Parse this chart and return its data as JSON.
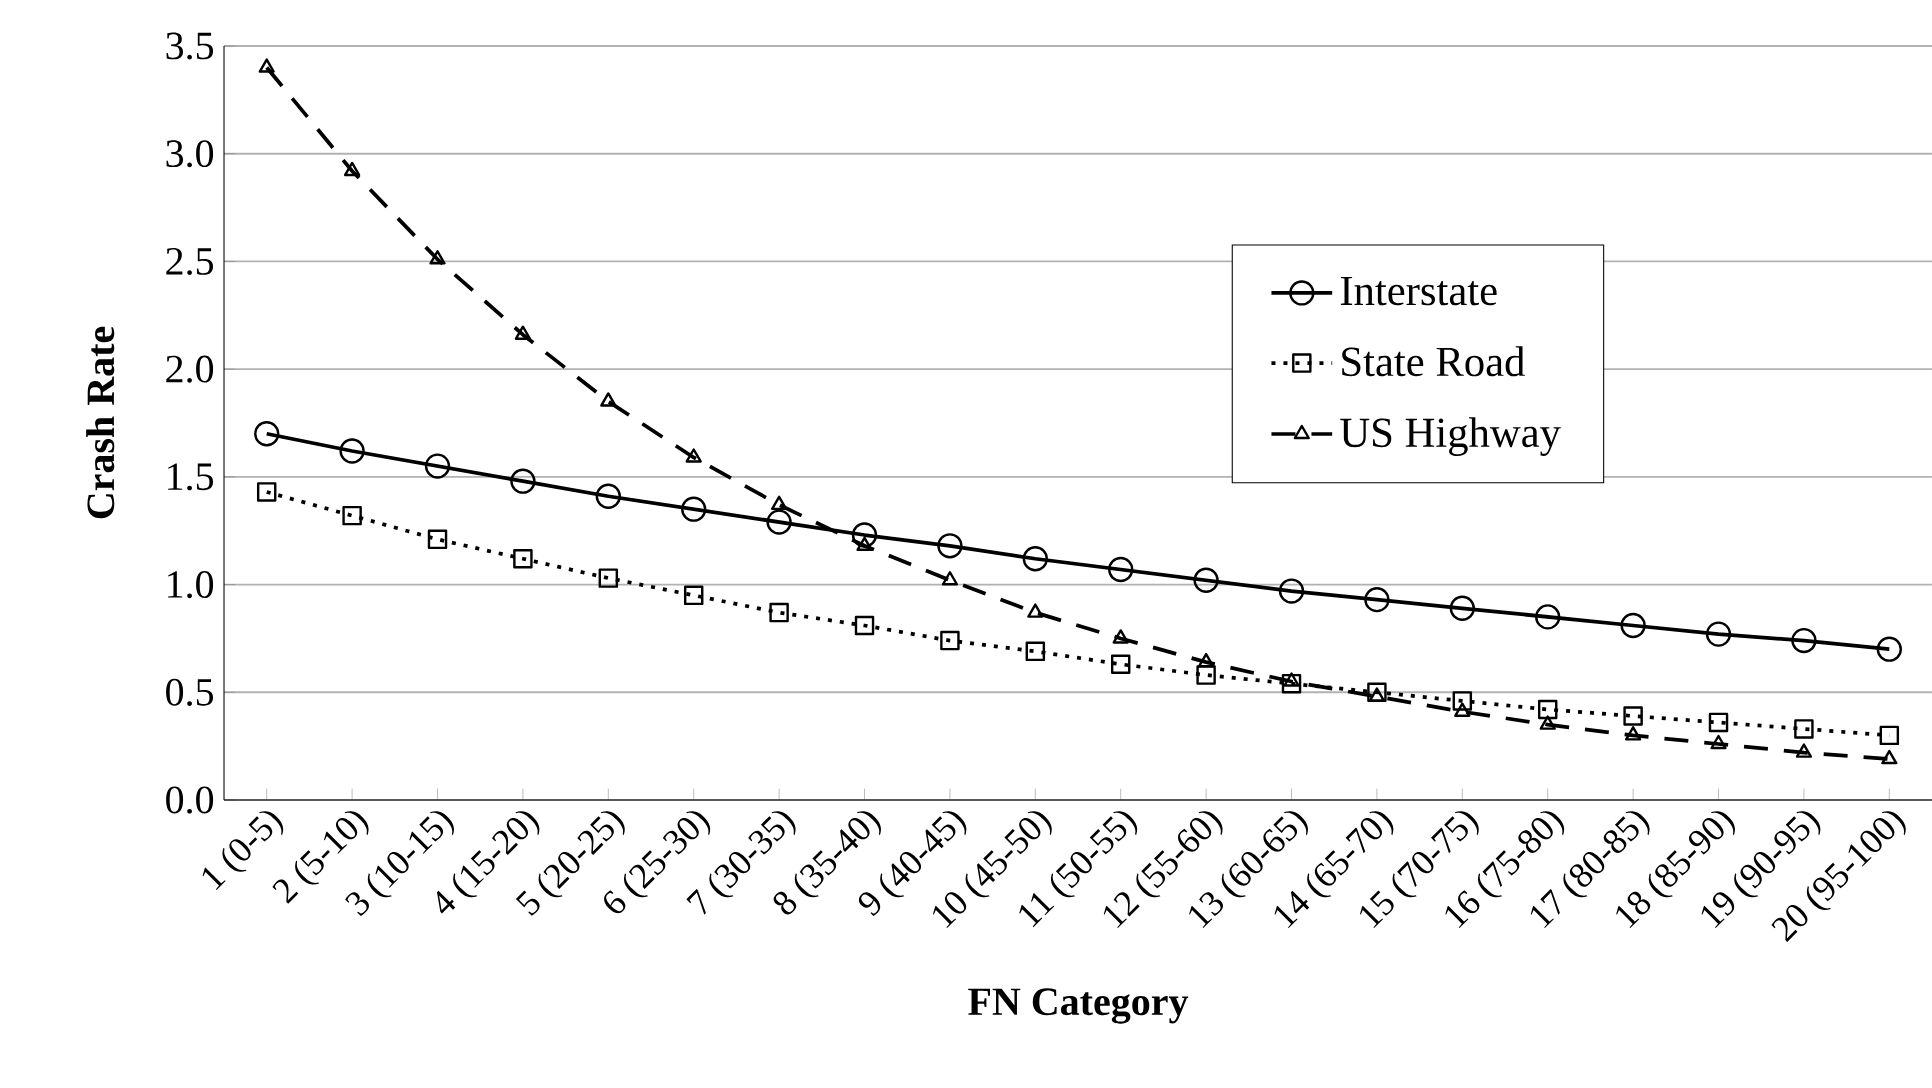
{
  "chart_data": {
    "type": "line",
    "xlabel": "FN Category",
    "ylabel": "Crash Rate",
    "categories": [
      "1 (0-5)",
      "2 (5-10)",
      "3 (10-15)",
      "4 (15-20)",
      "5 (20-25)",
      "6 (25-30)",
      "7 (30-35)",
      "8 (35-40)",
      "9 (40-45)",
      "10 (45-50)",
      "11 (50-55)",
      "12 (55-60)",
      "13 (60-65)",
      "14 (65-70)",
      "15 (70-75)",
      "16 (75-80)",
      "17 (80-85)",
      "18 (85-90)",
      "19 (90-95)",
      "20 (95-100)"
    ],
    "series": [
      {
        "name": "Interstate",
        "color": "#000000",
        "marker": "circle",
        "line_style": "solid",
        "values": [
          1.7,
          1.62,
          1.55,
          1.48,
          1.41,
          1.35,
          1.29,
          1.23,
          1.18,
          1.12,
          1.07,
          1.02,
          0.97,
          0.93,
          0.89,
          0.85,
          0.81,
          0.77,
          0.74,
          0.7
        ]
      },
      {
        "name": "State Road",
        "color": "#000000",
        "marker": "square",
        "line_style": "dotted",
        "values": [
          1.43,
          1.32,
          1.21,
          1.12,
          1.03,
          0.95,
          0.87,
          0.81,
          0.74,
          0.69,
          0.63,
          0.58,
          0.54,
          0.5,
          0.46,
          0.42,
          0.39,
          0.36,
          0.33,
          0.3
        ]
      },
      {
        "name": "US Highway",
        "color": "#000000",
        "marker": "triangle",
        "line_style": "dashed",
        "values": [
          3.4,
          2.92,
          2.51,
          2.16,
          1.85,
          1.59,
          1.37,
          1.18,
          1.02,
          0.87,
          0.75,
          0.64,
          0.55,
          0.48,
          0.41,
          0.35,
          0.3,
          0.26,
          0.22,
          0.19
        ]
      }
    ],
    "ylim": [
      0,
      3.5
    ],
    "yticks": [
      {
        "value": 0,
        "label": "0.0"
      },
      {
        "value": 0.5,
        "label": "0.5"
      },
      {
        "value": 1,
        "label": "1.0"
      },
      {
        "value": 1.5,
        "label": "1.5"
      },
      {
        "value": 2,
        "label": "2.0"
      },
      {
        "value": 2.5,
        "label": "2.5"
      },
      {
        "value": 3,
        "label": "3.0"
      },
      {
        "value": 3.5,
        "label": "3.5"
      }
    ],
    "grid": "y",
    "legend": "right"
  }
}
